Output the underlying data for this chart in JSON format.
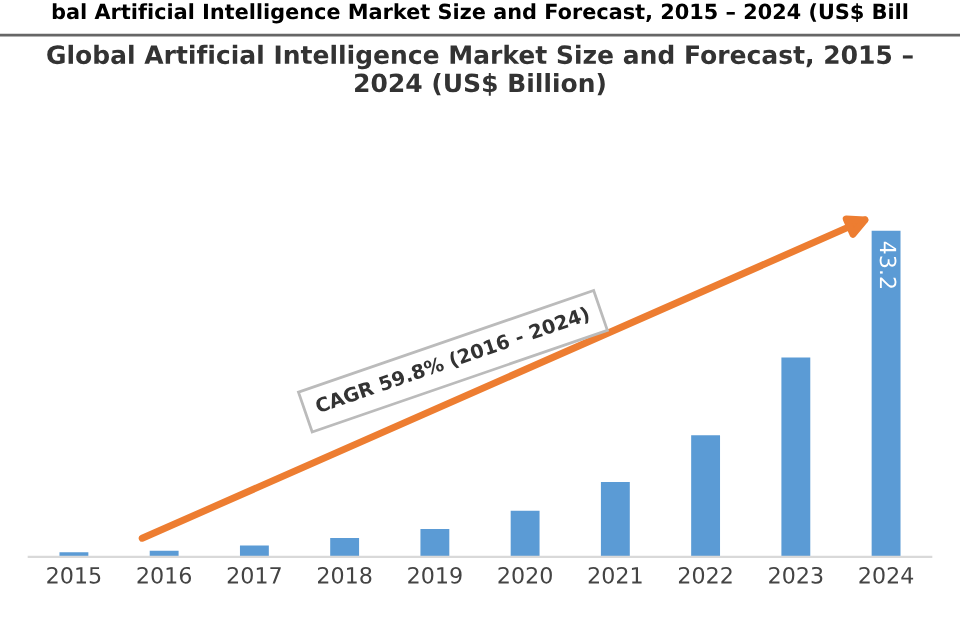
{
  "chart_data": {
    "type": "bar",
    "title": "Global Artificial Intelligence Market Size and Forecast, 2015 –\n2024 (US$ Billion)",
    "annotations": [
      "bal Artificial Intelligence Market Size and Forecast, 2015 – 2024 (US$ Bill",
      "CAGR 59.8% (2016 - 2024)"
    ],
    "categories": [
      "2015",
      "2016",
      "2017",
      "2018",
      "2019",
      "2020",
      "2021",
      "2022",
      "2023",
      "2024"
    ],
    "values": [
      0.6,
      0.8,
      1.5,
      2.5,
      3.7,
      6.1,
      9.9,
      16.1,
      26.4,
      43.2
    ],
    "value_labels": [
      null,
      null,
      null,
      null,
      null,
      null,
      null,
      null,
      null,
      "43.2"
    ],
    "color": "#5b9bd5",
    "tick_labels": "x",
    "grid": false,
    "legend": false
  }
}
